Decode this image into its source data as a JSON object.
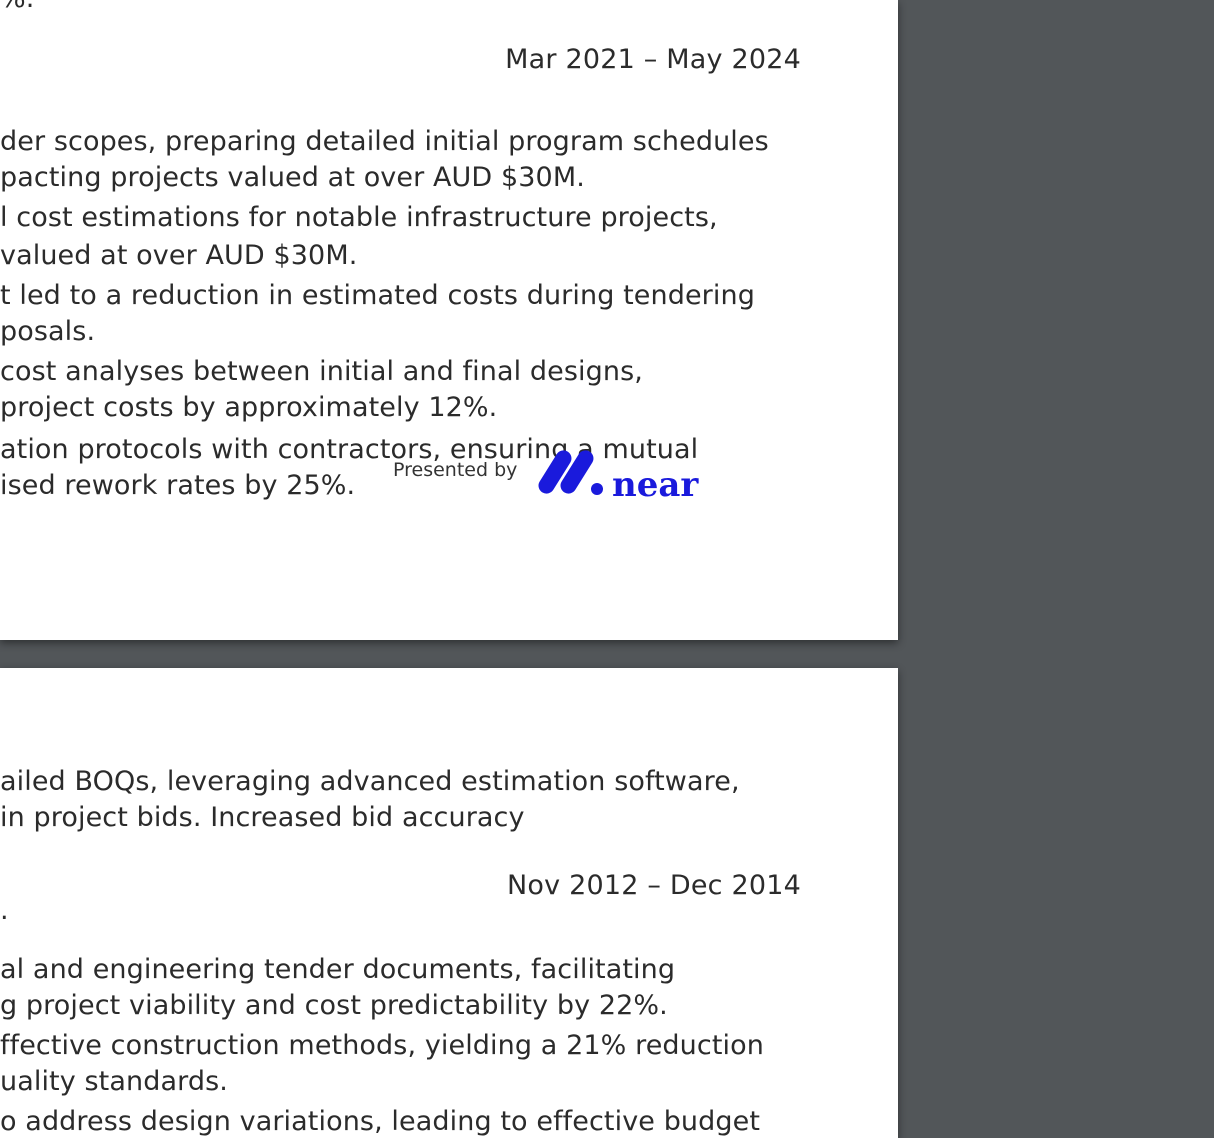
{
  "viewer": {
    "background_color": "#525659",
    "page_color": "#ffffff"
  },
  "page1": {
    "top_fragment": "%.",
    "date_range": "Mar 2021 – May 2024",
    "lines": [
      "der scopes, preparing detailed initial program schedules",
      "pacting projects valued at over AUD $30M.",
      "l cost estimations for notable infrastructure projects,",
      "valued at over AUD $30M.",
      "t led to a reduction in estimated costs during tendering",
      "posals.",
      "cost analyses between initial and final designs,",
      "project costs by approximately 12%.",
      "ation protocols with contractors, ensuring a mutual",
      "ised rework rates by 25%."
    ],
    "badge": {
      "label": "Presented by",
      "logo_text": "near",
      "logo_icon": "near-logo-icon",
      "brand_color": "#1a1adc"
    }
  },
  "page2": {
    "lines": [
      "ailed BOQs, leveraging advanced estimation software,",
      "in project bids. Increased bid accuracy"
    ],
    "date_range": "Nov 2012 – Dec 2014",
    "fragment": ".",
    "lines_b": [
      "al and engineering tender documents, facilitating",
      "g project viability and cost predictability by 22%.",
      "ffective construction methods, yielding a 21% reduction",
      "uality standards.",
      "o address design variations, leading to effective budget"
    ]
  }
}
